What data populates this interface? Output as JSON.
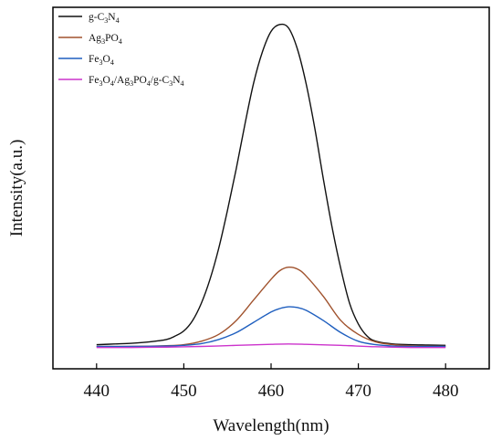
{
  "chart_data": {
    "type": "line",
    "title": "",
    "xlabel": "Wavelength(nm)",
    "ylabel": "Intensity(a.u.)",
    "xlim": [
      435,
      485
    ],
    "ylim": [
      0,
      1.05
    ],
    "xticks": [
      440,
      450,
      460,
      470,
      480
    ],
    "xtick_labels": [
      "440",
      "450",
      "460",
      "470",
      "480"
    ],
    "y_tick_labels": false,
    "grid": false,
    "legend_position": "top-left",
    "series": [
      {
        "name": "g-C3N4",
        "name_parts": [
          [
            "g-C",
            ""
          ],
          [
            "3",
            "sub"
          ],
          [
            "N",
            ""
          ],
          [
            "4",
            "sub"
          ]
        ],
        "color": "#111111",
        "x": [
          440,
          442,
          444,
          446,
          448,
          449,
          450,
          451,
          452,
          453,
          454,
          455,
          456,
          457,
          458,
          459,
          460,
          461,
          462,
          463,
          464,
          465,
          466,
          467,
          468,
          469,
          470,
          471,
          472,
          474,
          476,
          478,
          480
        ],
        "y": [
          0.07,
          0.072,
          0.074,
          0.078,
          0.085,
          0.095,
          0.11,
          0.14,
          0.19,
          0.26,
          0.35,
          0.46,
          0.58,
          0.71,
          0.83,
          0.92,
          0.98,
          1.0,
          0.99,
          0.93,
          0.83,
          0.7,
          0.55,
          0.41,
          0.29,
          0.19,
          0.13,
          0.095,
          0.08,
          0.072,
          0.07,
          0.069,
          0.068
        ]
      },
      {
        "name": "Ag3PO4",
        "name_parts": [
          [
            "Ag",
            ""
          ],
          [
            "3",
            "sub"
          ],
          [
            "PO",
            ""
          ],
          [
            "4",
            "sub"
          ]
        ],
        "color": "#a0522d",
        "x": [
          440,
          444,
          448,
          450,
          452,
          454,
          456,
          458,
          460,
          461,
          462,
          463,
          464,
          466,
          468,
          470,
          472,
          474,
          476,
          478,
          480
        ],
        "y": [
          0.065,
          0.065,
          0.067,
          0.07,
          0.08,
          0.1,
          0.14,
          0.2,
          0.26,
          0.285,
          0.295,
          0.29,
          0.27,
          0.21,
          0.14,
          0.1,
          0.078,
          0.07,
          0.067,
          0.066,
          0.065
        ]
      },
      {
        "name": "Fe3O4",
        "name_parts": [
          [
            "Fe",
            ""
          ],
          [
            "3",
            "sub"
          ],
          [
            "O",
            ""
          ],
          [
            "4",
            "sub"
          ]
        ],
        "color": "#1f5fbf",
        "x": [
          440,
          444,
          448,
          450,
          452,
          454,
          456,
          458,
          460,
          461,
          462,
          463,
          464,
          466,
          468,
          470,
          472,
          474,
          476,
          478,
          480
        ],
        "y": [
          0.065,
          0.065,
          0.066,
          0.068,
          0.073,
          0.085,
          0.105,
          0.135,
          0.165,
          0.175,
          0.18,
          0.178,
          0.17,
          0.14,
          0.105,
          0.08,
          0.07,
          0.066,
          0.065,
          0.065,
          0.065
        ]
      },
      {
        "name": "Fe3O4/Ag3PO4/g-C3N4",
        "name_parts": [
          [
            "Fe",
            ""
          ],
          [
            "3",
            "sub"
          ],
          [
            "O",
            ""
          ],
          [
            "4",
            "sub"
          ],
          [
            "/Ag",
            ""
          ],
          [
            "3",
            "sub"
          ],
          [
            "PO",
            ""
          ],
          [
            "4",
            "sub"
          ],
          [
            "/g-C",
            ""
          ],
          [
            "3",
            "sub"
          ],
          [
            "N",
            ""
          ],
          [
            "4",
            "sub"
          ]
        ],
        "color": "#cc33cc",
        "x": [
          440,
          444,
          448,
          452,
          456,
          460,
          462,
          464,
          468,
          472,
          476,
          480
        ],
        "y": [
          0.062,
          0.062,
          0.063,
          0.065,
          0.068,
          0.071,
          0.072,
          0.071,
          0.068,
          0.064,
          0.062,
          0.062
        ]
      }
    ]
  }
}
